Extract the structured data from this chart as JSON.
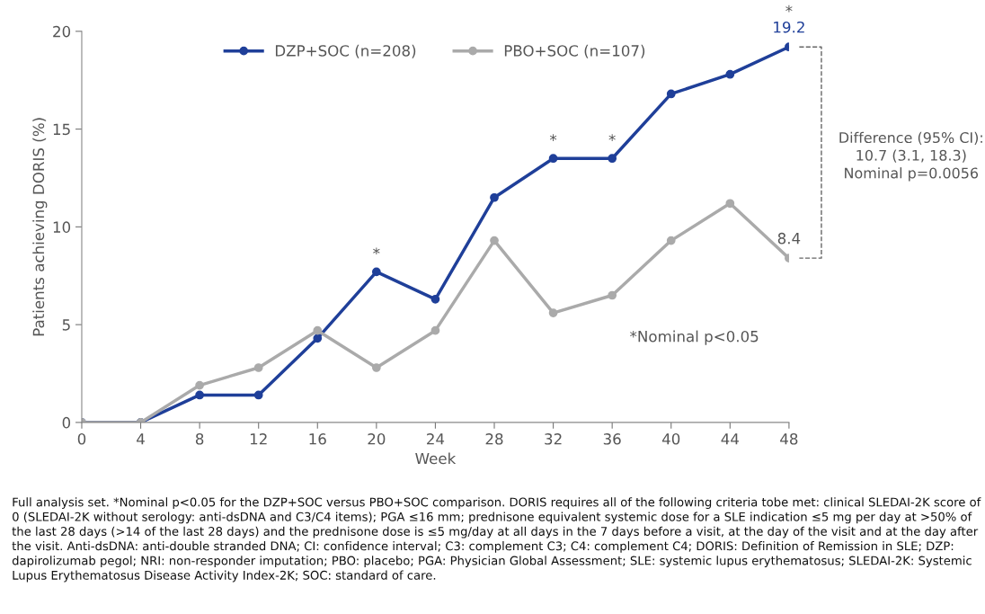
{
  "chart_data": {
    "type": "line",
    "xlabel": "Week",
    "ylabel": "Patients achieving DORIS (%)",
    "x": [
      0,
      4,
      8,
      12,
      16,
      20,
      24,
      28,
      32,
      36,
      40,
      44,
      48
    ],
    "xlim": [
      0,
      48
    ],
    "xticks": [
      0,
      4,
      8,
      12,
      16,
      20,
      24,
      28,
      32,
      36,
      40,
      44,
      48
    ],
    "ylim": [
      0,
      20
    ],
    "yticks": [
      0,
      5,
      10,
      15,
      20
    ],
    "series": [
      {
        "name": "DZP+SOC (n=208)",
        "color": "#1f3f99",
        "values": [
          0,
          0,
          1.4,
          1.4,
          4.3,
          7.7,
          6.3,
          11.5,
          13.5,
          13.5,
          16.8,
          17.8,
          19.2
        ],
        "value_labels": [
          null,
          null,
          null,
          null,
          null,
          null,
          null,
          null,
          null,
          null,
          null,
          null,
          "19.2"
        ]
      },
      {
        "name": "PBO+SOC (n=107)",
        "color": "#aaaaaa",
        "values": [
          0,
          0,
          1.9,
          2.8,
          4.7,
          2.8,
          4.7,
          9.3,
          5.6,
          6.5,
          9.3,
          11.2,
          8.4
        ],
        "value_labels": [
          null,
          null,
          null,
          null,
          null,
          null,
          null,
          null,
          null,
          null,
          null,
          null,
          "8.4"
        ]
      }
    ],
    "marker": "circle",
    "line_style": "solid",
    "grid": false,
    "legend": "top",
    "annotations": [
      {
        "text": "*",
        "x": 20,
        "y": 7.7
      },
      {
        "text": "*",
        "x": 32,
        "y": 13.5
      },
      {
        "text": "*",
        "x": 36,
        "y": 13.5
      },
      {
        "text": "*",
        "x": 48,
        "y": 19.2
      },
      "Difference (95% CI):\n10.7 (3.1, 18.3)\nNominal p=0.0056",
      "*Nominal p<0.05",
      "Full analysis set. *Nominal p<0.05 for the DZP+SOC versus PBO+SOC comparison. DORIS requires all of the following criteria tobe met: clinical SLEDAI-2K score of 0 (SLEDAI-2K without serology: anti-dsDNA and C3/C4 items); PGA ≤16 mm; prednisone equivalent systemic dose for a SLE indication ≤5 mg per day at >50% of the last 28 days (>14 of the last 28 days) and the prednisone dose is ≤5 mg/day at all days in the 7 days before a visit, at the day of the visit and at the day after the visit. Anti-dsDNA: anti-double stranded DNA; CI: confidence interval; C3: complement C3; C4: complement C4; DORIS: Definition of Remission in SLE; DZP: dapirolizumab pegol; NRI: non-responder imputation; PBO: placebo; PGA: Physician Global Assessment; SLE: systemic lupus erythematosus; SLEDAI-2K: Systemic Lupus Erythematosus Disease Activity Index-2K; SOC: standard of care."
    ]
  }
}
